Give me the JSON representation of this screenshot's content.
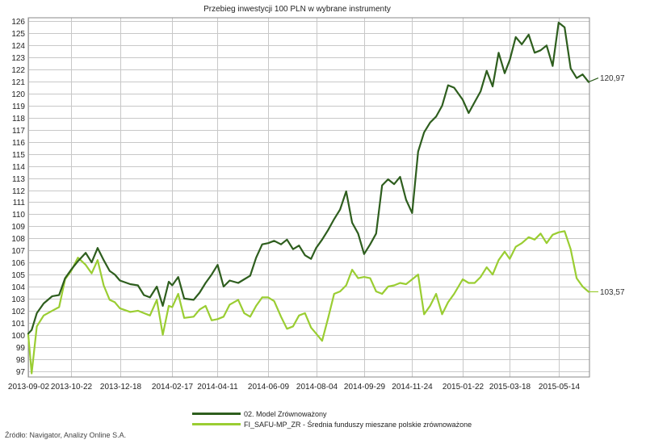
{
  "source_text": "Źródło: Navigator, Analizy Online S.A.",
  "chart_data": {
    "type": "line",
    "title": "Przebieg inwestycji 100 PLN w wybrane instrumenty",
    "xlabel": "",
    "ylabel": "",
    "x_ticks": [
      "2013-09-02",
      "2013-10-22",
      "2013-12-18",
      "2014-02-17",
      "2014-04-11",
      "2014-06-09",
      "2014-08-04",
      "2014-09-29",
      "2014-11-24",
      "2015-01-22",
      "2015-03-18",
      "2015-05-14"
    ],
    "ylim": [
      96.5,
      126.3
    ],
    "y_ticks": [
      97,
      98,
      99,
      100,
      101,
      102,
      103,
      104,
      105,
      106,
      107,
      108,
      109,
      110,
      111,
      112,
      113,
      114,
      115,
      116,
      117,
      118,
      119,
      120,
      121,
      122,
      123,
      124,
      125,
      126
    ],
    "grid": true,
    "legend_position": "bottom",
    "series": [
      {
        "name": "02. Model Zrównoważony",
        "color": "#2e5e1e",
        "end_label": "120,97",
        "x": [
          "2013-09-02",
          "2013-09-06",
          "2013-09-12",
          "2013-09-20",
          "2013-09-30",
          "2013-10-08",
          "2013-10-15",
          "2013-10-22",
          "2013-10-30",
          "2013-11-08",
          "2013-11-15",
          "2013-11-22",
          "2013-11-29",
          "2013-12-06",
          "2013-12-12",
          "2013-12-18",
          "2013-12-30",
          "2014-01-08",
          "2014-01-15",
          "2014-01-22",
          "2014-01-30",
          "2014-02-06",
          "2014-02-13",
          "2014-02-17",
          "2014-02-24",
          "2014-03-03",
          "2014-03-14",
          "2014-03-21",
          "2014-03-28",
          "2014-04-04",
          "2014-04-11",
          "2014-04-18",
          "2014-04-25",
          "2014-05-05",
          "2014-05-12",
          "2014-05-19",
          "2014-05-26",
          "2014-06-02",
          "2014-06-09",
          "2014-06-16",
          "2014-06-24",
          "2014-07-01",
          "2014-07-08",
          "2014-07-15",
          "2014-07-22",
          "2014-07-29",
          "2014-08-04",
          "2014-08-11",
          "2014-08-18",
          "2014-08-25",
          "2014-09-01",
          "2014-09-08",
          "2014-09-15",
          "2014-09-22",
          "2014-09-29",
          "2014-10-06",
          "2014-10-13",
          "2014-10-20",
          "2014-10-27",
          "2014-11-03",
          "2014-11-10",
          "2014-11-17",
          "2014-11-24",
          "2014-12-01",
          "2014-12-08",
          "2014-12-15",
          "2014-12-22",
          "2014-12-29",
          "2015-01-05",
          "2015-01-12",
          "2015-01-22",
          "2015-01-29",
          "2015-02-05",
          "2015-02-12",
          "2015-02-19",
          "2015-02-26",
          "2015-03-05",
          "2015-03-12",
          "2015-03-18",
          "2015-03-25",
          "2015-04-01",
          "2015-04-09",
          "2015-04-16",
          "2015-04-23",
          "2015-04-30",
          "2015-05-07",
          "2015-05-14",
          "2015-05-21",
          "2015-05-28",
          "2015-06-04",
          "2015-06-11",
          "2015-06-18"
        ],
        "values": [
          100.1,
          100.4,
          101.8,
          102.6,
          103.2,
          103.3,
          104.7,
          105.4,
          106.1,
          106.8,
          106.0,
          107.2,
          106.2,
          105.3,
          105.0,
          104.5,
          104.2,
          104.1,
          103.3,
          103.1,
          104.0,
          102.4,
          104.4,
          104.1,
          104.8,
          103.0,
          102.9,
          103.5,
          104.3,
          105.0,
          105.8,
          104.0,
          104.5,
          104.3,
          104.6,
          104.9,
          106.4,
          107.5,
          107.6,
          107.8,
          107.5,
          107.9,
          107.1,
          107.4,
          106.6,
          106.3,
          107.2,
          107.9,
          108.7,
          109.6,
          110.4,
          111.9,
          109.3,
          108.4,
          106.7,
          107.5,
          108.4,
          112.4,
          112.9,
          112.5,
          113.1,
          111.2,
          110.1,
          115.2,
          116.8,
          117.6,
          118.1,
          119.0,
          120.7,
          120.5,
          119.5,
          118.4,
          119.3,
          120.2,
          121.9,
          120.6,
          123.4,
          121.7,
          122.8,
          124.7,
          124.1,
          124.9,
          123.4,
          123.6,
          124.0,
          122.3,
          125.9,
          125.5,
          122.1,
          121.3,
          121.6,
          120.97
        ]
      },
      {
        "name": "FI_SAFU-MP_ZR - Średnia funduszy mieszane polskie zrównoważone",
        "color": "#9acd32",
        "end_label": "103,57",
        "x": [
          "2013-09-02",
          "2013-09-06",
          "2013-09-12",
          "2013-09-20",
          "2013-09-30",
          "2013-10-08",
          "2013-10-15",
          "2013-10-22",
          "2013-10-30",
          "2013-11-08",
          "2013-11-15",
          "2013-11-22",
          "2013-11-29",
          "2013-12-06",
          "2013-12-12",
          "2013-12-18",
          "2013-12-30",
          "2014-01-08",
          "2014-01-15",
          "2014-01-22",
          "2014-01-30",
          "2014-02-06",
          "2014-02-13",
          "2014-02-17",
          "2014-02-24",
          "2014-03-03",
          "2014-03-14",
          "2014-03-21",
          "2014-03-28",
          "2014-04-04",
          "2014-04-11",
          "2014-04-18",
          "2014-04-25",
          "2014-05-05",
          "2014-05-12",
          "2014-05-19",
          "2014-05-26",
          "2014-06-02",
          "2014-06-09",
          "2014-06-16",
          "2014-06-24",
          "2014-07-01",
          "2014-07-08",
          "2014-07-15",
          "2014-07-22",
          "2014-07-29",
          "2014-08-04",
          "2014-08-11",
          "2014-08-18",
          "2014-08-25",
          "2014-09-01",
          "2014-09-08",
          "2014-09-15",
          "2014-09-22",
          "2014-09-29",
          "2014-10-06",
          "2014-10-13",
          "2014-10-20",
          "2014-10-27",
          "2014-11-03",
          "2014-11-10",
          "2014-11-17",
          "2014-11-24",
          "2014-12-01",
          "2014-12-08",
          "2014-12-15",
          "2014-12-22",
          "2014-12-29",
          "2015-01-05",
          "2015-01-12",
          "2015-01-22",
          "2015-01-29",
          "2015-02-05",
          "2015-02-12",
          "2015-02-19",
          "2015-02-26",
          "2015-03-05",
          "2015-03-12",
          "2015-03-18",
          "2015-03-25",
          "2015-04-01",
          "2015-04-09",
          "2015-04-16",
          "2015-04-23",
          "2015-04-30",
          "2015-05-07",
          "2015-05-14",
          "2015-05-21",
          "2015-05-28",
          "2015-06-04",
          "2015-06-11",
          "2015-06-18"
        ],
        "values": [
          100.0,
          96.8,
          100.7,
          101.6,
          102.0,
          102.3,
          104.6,
          105.3,
          106.4,
          105.8,
          105.1,
          106.2,
          104.1,
          102.9,
          102.7,
          102.2,
          101.9,
          102.0,
          101.8,
          101.6,
          102.9,
          100.0,
          102.4,
          102.3,
          103.4,
          101.4,
          101.5,
          102.1,
          102.4,
          101.2,
          101.3,
          101.5,
          102.5,
          102.9,
          101.8,
          101.5,
          102.4,
          103.1,
          103.1,
          102.8,
          101.5,
          100.5,
          100.7,
          101.6,
          101.8,
          100.6,
          100.1,
          99.5,
          101.4,
          103.4,
          103.6,
          104.1,
          105.4,
          104.7,
          104.8,
          104.7,
          103.6,
          103.4,
          104.0,
          104.1,
          104.3,
          104.2,
          104.6,
          105.0,
          101.7,
          102.4,
          103.4,
          101.7,
          102.7,
          103.4,
          104.6,
          104.3,
          104.3,
          104.8,
          105.6,
          105.0,
          106.2,
          106.9,
          106.3,
          107.3,
          107.6,
          108.1,
          107.9,
          108.4,
          107.6,
          108.3,
          108.5,
          108.6,
          107.1,
          104.7,
          104.0,
          103.57
        ]
      }
    ]
  }
}
